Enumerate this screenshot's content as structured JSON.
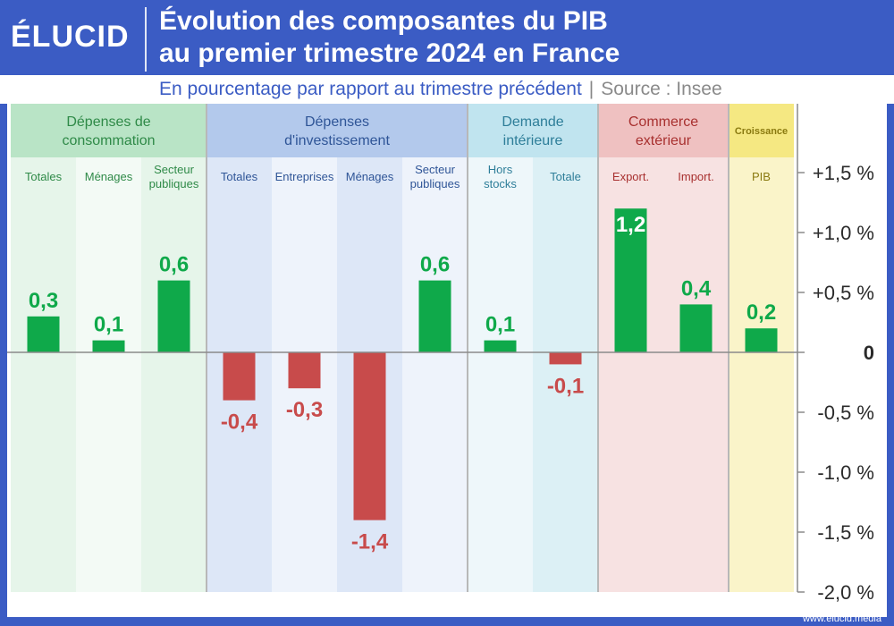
{
  "brand": {
    "logo": "ÉLUCID",
    "website": "www.elucid.media"
  },
  "title_line1": "Évolution des composantes du PIB",
  "title_line2": "au premier trimestre 2024 en France",
  "subtitle": "En pourcentage par rapport au trimestre précédent",
  "source": "Source : Insee",
  "colors": {
    "positive": "#0fa94a",
    "negative": "#c84b4b",
    "header_text": "#ffffff",
    "background": "#3b5cc4"
  },
  "chart_data": {
    "type": "bar",
    "ylim": [
      -2.0,
      1.7
    ],
    "y_ticks": [
      {
        "value": 1.5,
        "label": "+1,5 %"
      },
      {
        "value": 1.0,
        "label": "+1,0 %"
      },
      {
        "value": 0.5,
        "label": "+0,5 %"
      },
      {
        "value": 0,
        "label": "0"
      },
      {
        "value": -0.5,
        "label": "-0,5 %"
      },
      {
        "value": -1.0,
        "label": "-1,0 %"
      },
      {
        "value": -1.5,
        "label": "-1,5 %"
      },
      {
        "value": -2.0,
        "label": "-2,0 %"
      }
    ],
    "groups": [
      {
        "name": "Dépenses de consommation",
        "name_lines": [
          "Dépenses de",
          "consommation"
        ],
        "header_color": "#b9e4c6",
        "band_color": "#e6f5ea",
        "band_alt": "#f3faf5",
        "text_color": "#2f8a48",
        "categories": [
          {
            "label_lines": [
              "Totales"
            ],
            "value": 0.3,
            "label": "0,3"
          },
          {
            "label_lines": [
              "Ménages"
            ],
            "value": 0.1,
            "label": "0,1"
          },
          {
            "label_lines": [
              "Secteur",
              "publiques"
            ],
            "value": 0.6,
            "label": "0,6"
          }
        ]
      },
      {
        "name": "Dépenses d'investissement",
        "name_lines": [
          "Dépenses",
          "d'investissement"
        ],
        "header_color": "#b3c9ec",
        "band_color": "#dde7f7",
        "band_alt": "#eef3fb",
        "text_color": "#2f5597",
        "categories": [
          {
            "label_lines": [
              "Totales"
            ],
            "value": -0.4,
            "label": "-0,4"
          },
          {
            "label_lines": [
              "Entreprises"
            ],
            "value": -0.3,
            "label": "-0,3"
          },
          {
            "label_lines": [
              "Ménages"
            ],
            "value": -1.4,
            "label": "-1,4"
          },
          {
            "label_lines": [
              "Secteur",
              "publiques"
            ],
            "value": 0.6,
            "label": "0,6"
          }
        ]
      },
      {
        "name": "Demande intérieure",
        "name_lines": [
          "Demande",
          "intérieure"
        ],
        "header_color": "#c0e4ef",
        "band_color": "#eef7fa",
        "band_alt": "#dcf0f5",
        "text_color": "#2e7e99",
        "categories": [
          {
            "label_lines": [
              "Hors",
              "stocks"
            ],
            "value": 0.1,
            "label": "0,1"
          },
          {
            "label_lines": [
              "Totale"
            ],
            "value": -0.1,
            "label": "-0,1"
          }
        ]
      },
      {
        "name": "Commerce extérieur",
        "name_lines": [
          "Commerce",
          "extérieur"
        ],
        "header_color": "#efc1c1",
        "band_color": "#f7e2e2",
        "band_alt": "#f7e2e2",
        "text_color": "#a8302f",
        "categories": [
          {
            "label_lines": [
              "Export."
            ],
            "value": 1.2,
            "label": "1,2"
          },
          {
            "label_lines": [
              "Import."
            ],
            "value": 0.4,
            "label": "0,4"
          }
        ]
      },
      {
        "name": "Croissance",
        "name_lines": [
          "Croissance"
        ],
        "header_color": "#f5e882",
        "band_color": "#faf4c9",
        "band_alt": "#faf4c9",
        "text_color": "#8a7a10",
        "categories": [
          {
            "label_lines": [
              "PIB"
            ],
            "value": 0.2,
            "label": "0,2"
          }
        ]
      }
    ]
  }
}
